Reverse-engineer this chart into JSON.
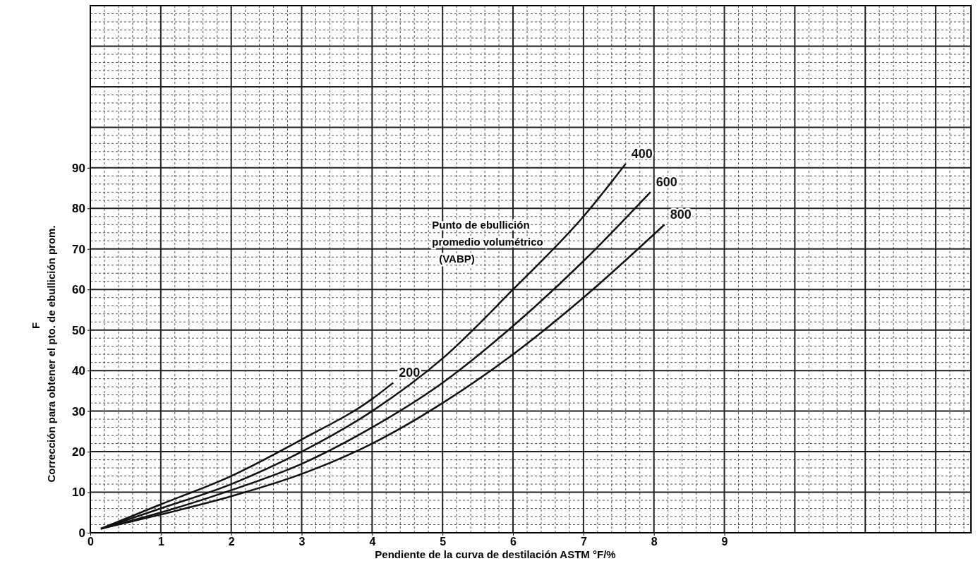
{
  "chart_data": {
    "type": "line",
    "xlabel": "Pendiente de la curva de destilación ASTM °F/%",
    "ylabel": "Corrección para obtener el pto. de ebullición prom.",
    "annotations": [
      "Punto de ebullición promedio volumétrico (VABP)",
      "F"
    ],
    "xlim": [
      0,
      12.5
    ],
    "ylim": [
      0,
      130
    ],
    "xticks": [
      0,
      1,
      2,
      3,
      4,
      5,
      6,
      7,
      8,
      9
    ],
    "yticks": [
      0,
      10,
      20,
      30,
      40,
      50,
      60,
      70,
      80,
      90
    ],
    "grid": true,
    "marker": "none",
    "line_style": "solid",
    "series": [
      {
        "name": "200",
        "color": "#111111",
        "x": [
          0.15,
          1,
          2,
          3,
          4,
          4.3
        ],
        "values": [
          1,
          7,
          14,
          23,
          33,
          37
        ]
      },
      {
        "name": "400",
        "color": "#111111",
        "x": [
          0.15,
          1,
          2,
          3,
          4,
          5,
          6,
          7,
          7.6
        ],
        "values": [
          1,
          6,
          12,
          20,
          30,
          43,
          60,
          78,
          91
        ]
      },
      {
        "name": "600",
        "color": "#111111",
        "x": [
          0.15,
          1,
          2,
          3,
          4,
          5,
          6,
          7,
          7.95
        ],
        "values": [
          1,
          5,
          10.5,
          17,
          26,
          37,
          51,
          67,
          84
        ]
      },
      {
        "name": "800",
        "color": "#111111",
        "x": [
          0.15,
          1,
          2,
          3,
          4,
          5,
          6,
          7,
          8.15
        ],
        "values": [
          1,
          4.5,
          9,
          14.5,
          22,
          32,
          44,
          58,
          76
        ]
      }
    ]
  }
}
